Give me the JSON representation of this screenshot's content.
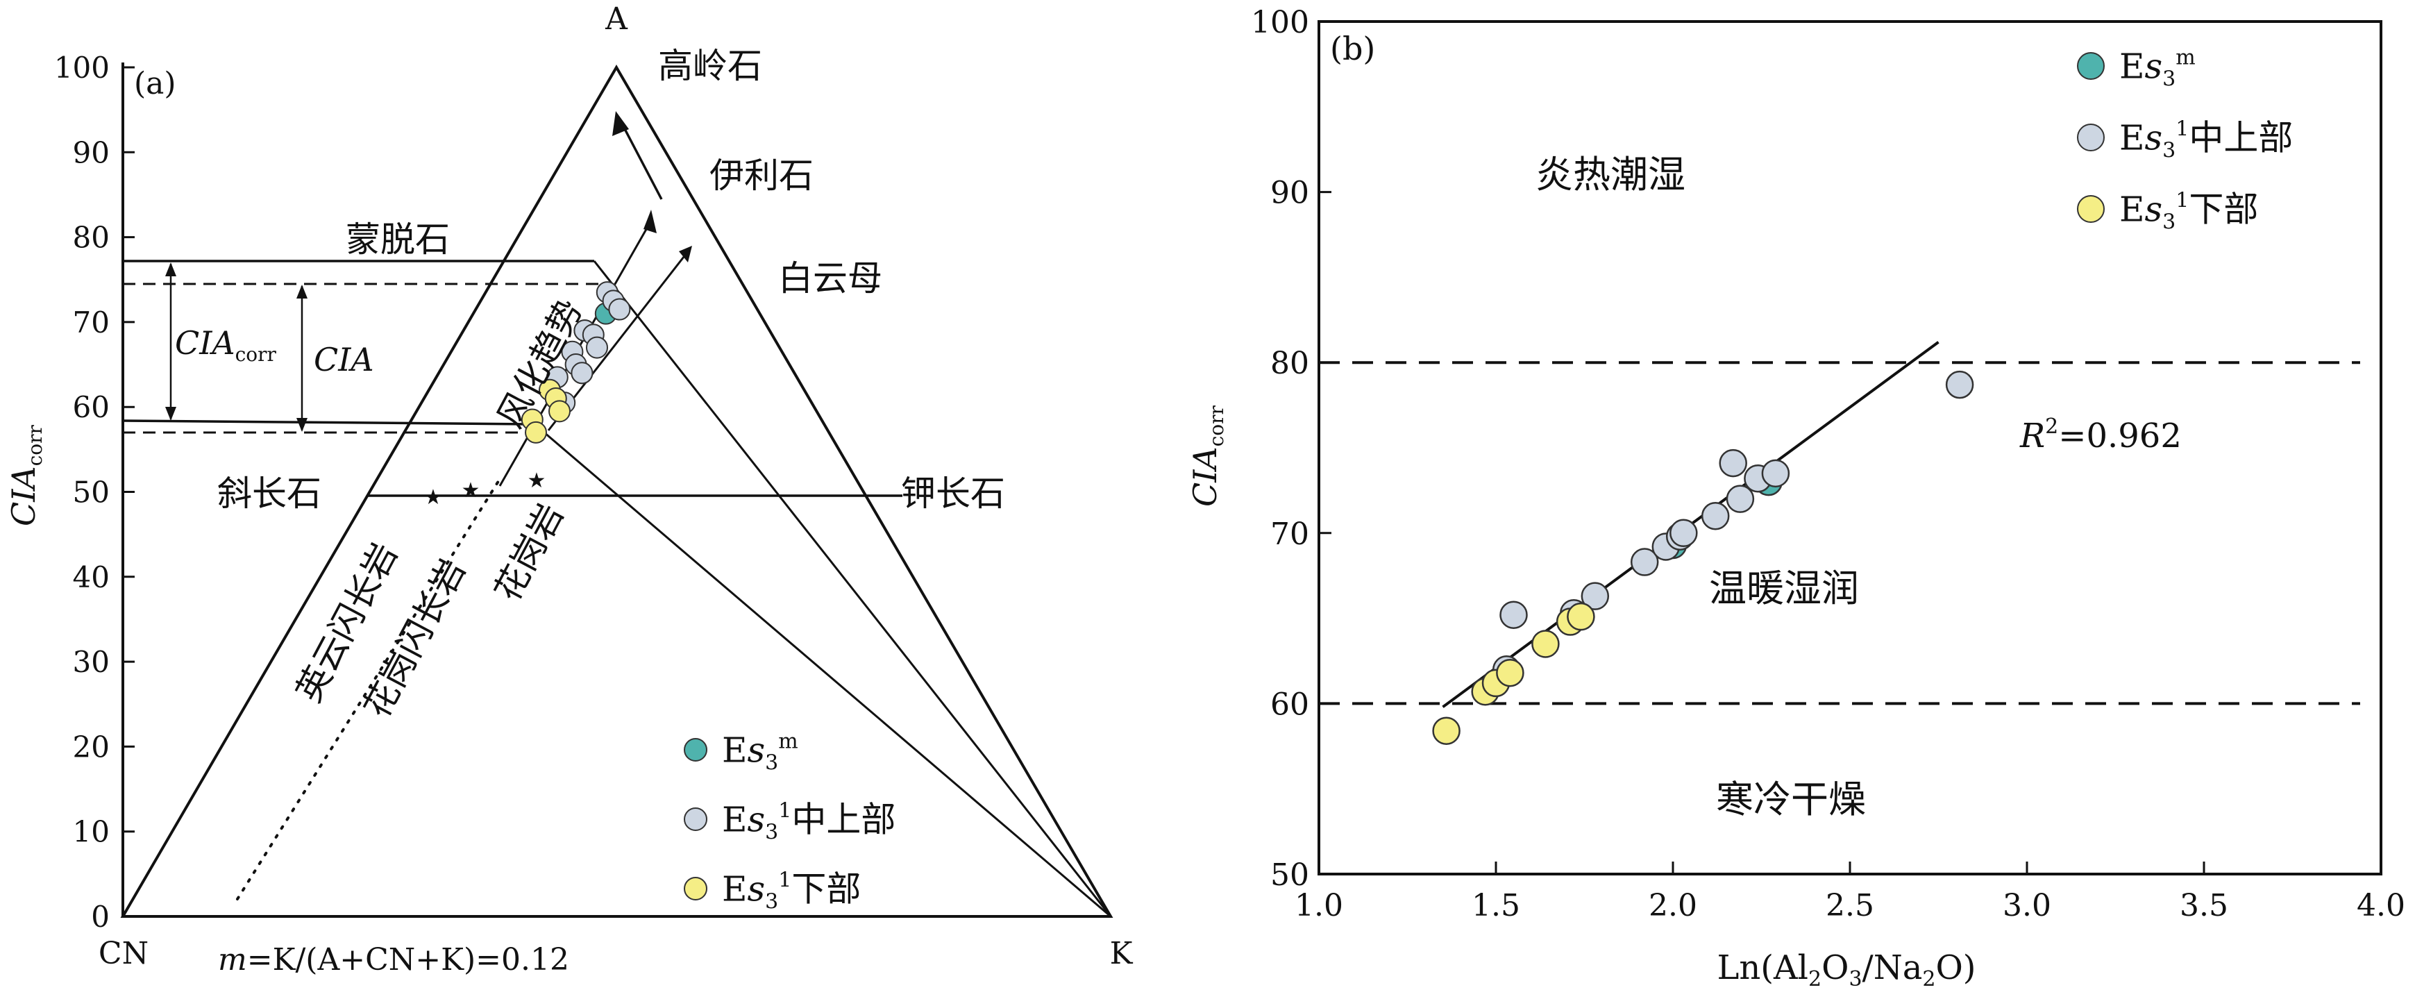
{
  "panel_a": {
    "label": "(a)",
    "vertex_top": "A",
    "vertex_left": "CN",
    "vertex_right": "K",
    "y_axis_label": "CIA",
    "y_axis_label_sub": "corr",
    "y_ticks": [
      "0",
      "10",
      "20",
      "30",
      "40",
      "50",
      "60",
      "70",
      "80",
      "90",
      "100"
    ],
    "minerals": {
      "kaolinite": "高岭石",
      "illite": "伊利石",
      "muscovite": "白云母",
      "smectite": "蒙脱石",
      "plagioclase": "斜长石",
      "kfeldspar": "钾长石"
    },
    "bracket_ciacorr": "CIA",
    "bracket_ciacorr_sub": "corr",
    "bracket_cia": "CIA",
    "weathering_trend": "风化趋势",
    "rocks": [
      "英云闪长岩",
      "花岗闪长岩",
      "花岗岩"
    ],
    "formula_m": "m",
    "formula_rest": "=K/(A+CN+K)=0.12",
    "legend": [
      {
        "pre": "E",
        "s": "s",
        "sub": "3",
        "sup": "m",
        "post": "",
        "color": "#4fb3ad"
      },
      {
        "pre": "E",
        "s": "s",
        "sub": "3",
        "sup": "1",
        "post": "中上部",
        "color": "#cdd6e2"
      },
      {
        "pre": "E",
        "s": "s",
        "sub": "3",
        "sup": "1",
        "post": "下部",
        "color": "#f5ee86"
      }
    ]
  },
  "panel_b": {
    "label": "(b)",
    "x_axis_label": "Ln(Al2O3/Na2O)",
    "y_axis_label": "CIA",
    "y_axis_label_sub": "corr",
    "x_ticks": [
      "1.0",
      "1.5",
      "2.0",
      "2.5",
      "3.0",
      "3.5",
      "4.0"
    ],
    "y_ticks": [
      "50",
      "60",
      "70",
      "80",
      "90",
      "100"
    ],
    "zones": {
      "hot_humid": "炎热潮湿",
      "warm_humid": "温暖湿润",
      "cold_dry": "寒冷干燥"
    },
    "r2_label": "R",
    "r2_sup": "2",
    "r2_value": "=0.962"
  },
  "chart_data": [
    {
      "type": "scatter",
      "panel": "a",
      "title": "(a)",
      "ylabel": "CIAcorr",
      "ylim": [
        0,
        100
      ],
      "m_value": 0.12,
      "cia_levels": {
        "ciacorr_upper": 76.5,
        "cia_upper": 73.5,
        "ciacorr_lower": 58,
        "cia_lower": 56.5,
        "feldspar_line": 49.5
      },
      "series": [
        {
          "name": "Es3m",
          "points_cia": [
            69,
            71,
            64
          ]
        },
        {
          "name": "Es3 1中上部",
          "points_cia": [
            73.5,
            72.5,
            71.5,
            69,
            68.5,
            67,
            66.5,
            65,
            64,
            63.5,
            61,
            60.5
          ]
        },
        {
          "name": "Es3 1下部",
          "points_cia": [
            62,
            61,
            59.5,
            58.5,
            57
          ]
        }
      ]
    },
    {
      "type": "scatter",
      "panel": "b",
      "title": "(b)",
      "xlabel": "Ln(Al2O3/Na2O)",
      "ylabel": "CIAcorr",
      "xlim": [
        1.0,
        4.0
      ],
      "ylim": [
        50,
        100
      ],
      "hlines": [
        60,
        80
      ],
      "fit": {
        "x": [
          1.35,
          2.75
        ],
        "y": [
          59.8,
          81.2
        ],
        "r2": 0.962
      },
      "series": [
        {
          "name": "Es3m",
          "points": [
            [
              2.0,
              69.3
            ],
            [
              2.27,
              73.0
            ]
          ]
        },
        {
          "name": "Es3 1中上部",
          "points": [
            [
              1.55,
              65.2
            ],
            [
              1.53,
              62.0
            ],
            [
              1.72,
              65.3
            ],
            [
              1.78,
              66.3
            ],
            [
              1.92,
              68.3
            ],
            [
              1.98,
              69.2
            ],
            [
              2.02,
              69.8
            ],
            [
              2.03,
              70.0
            ],
            [
              2.12,
              71.0
            ],
            [
              2.17,
              74.1
            ],
            [
              2.19,
              72.0
            ],
            [
              2.24,
              73.2
            ],
            [
              2.29,
              73.5
            ],
            [
              2.81,
              78.7
            ]
          ]
        },
        {
          "name": "Es3 1下部",
          "points": [
            [
              1.36,
              58.4
            ],
            [
              1.47,
              60.7
            ],
            [
              1.5,
              61.2
            ],
            [
              1.54,
              61.8
            ],
            [
              1.64,
              63.5
            ],
            [
              1.71,
              64.8
            ],
            [
              1.74,
              65.1
            ]
          ]
        }
      ]
    }
  ]
}
